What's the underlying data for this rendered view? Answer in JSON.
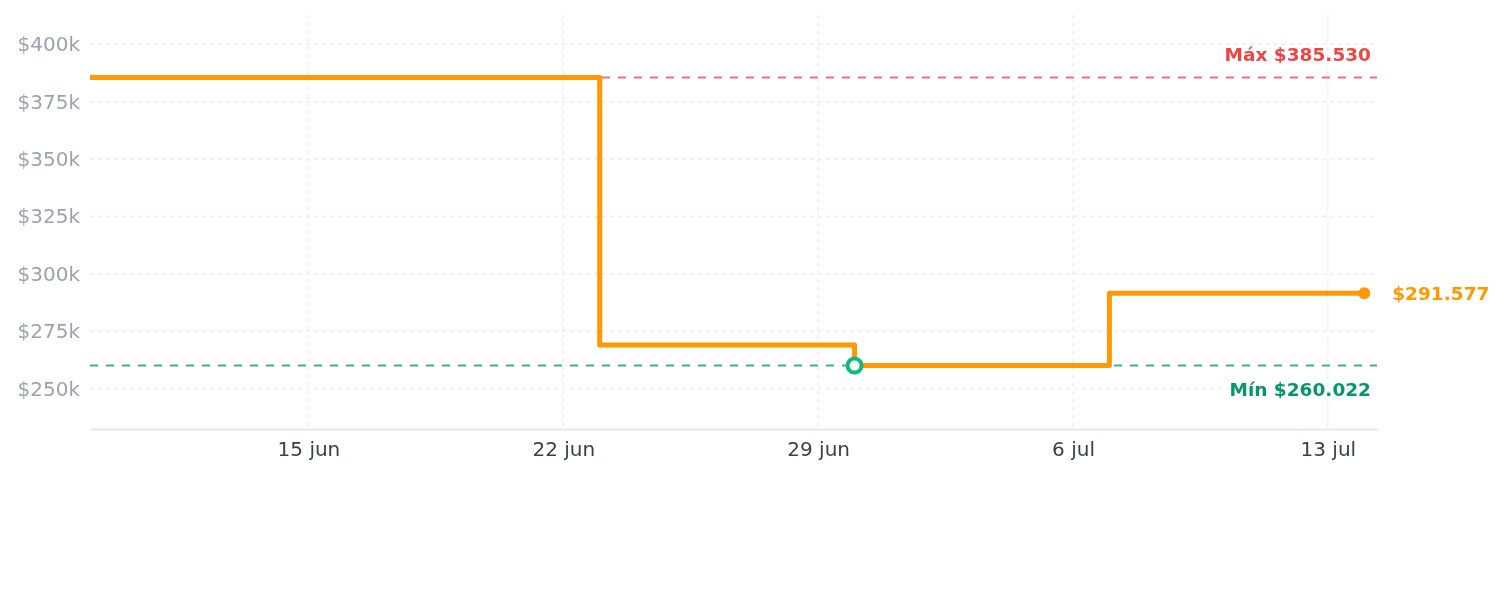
{
  "chart_data": {
    "type": "step",
    "xlim": [
      "--06-09",
      "--07-14T08:24"
    ],
    "xticks": [
      {
        "value": "--06-15",
        "label": "15 jun"
      },
      {
        "value": "--06-22",
        "label": "22 jun"
      },
      {
        "value": "--06-29",
        "label": "29 jun"
      },
      {
        "value": "--07-06",
        "label": "6 jul"
      },
      {
        "value": "--07-13",
        "label": "13 jul"
      }
    ],
    "ylim": [
      232400,
      412800
    ],
    "yticks": [
      {
        "value": 250000,
        "label": "$250k"
      },
      {
        "value": 275000,
        "label": "$275k"
      },
      {
        "value": 300000,
        "label": "$300k"
      },
      {
        "value": 325000,
        "label": "$325k"
      },
      {
        "value": 350000,
        "label": "$350k"
      },
      {
        "value": 375000,
        "label": "$375k"
      },
      {
        "value": 400000,
        "label": "$400k"
      }
    ],
    "grid": true,
    "series": [
      {
        "color": "#ff9900",
        "marker": "none",
        "x": [
          "--06-09",
          "--06-23",
          "--06-30",
          "--07-07",
          "--07-14"
        ],
        "values": [
          385530,
          269000,
          260022,
          291577,
          291577
        ]
      },
      {
        "type": "scatter",
        "color": "#10b981",
        "marker": "circle",
        "x": [
          "--06-30"
        ],
        "values": [
          260022
        ]
      },
      {
        "type": "scatter",
        "color": "#ff9900",
        "marker": "circle",
        "x": [
          "--07-14"
        ],
        "values": [
          291577
        ],
        "value_labels": [
          "$291.577"
        ]
      }
    ],
    "ref_lines": [
      {
        "axis": "y",
        "value": 385530,
        "label": "Máx $385.530",
        "color": "#ef4444",
        "line_style": "dashed"
      },
      {
        "axis": "y",
        "value": 260022,
        "label": "Mín $260.022",
        "color": "#059669",
        "line_style": "dashed"
      }
    ]
  }
}
